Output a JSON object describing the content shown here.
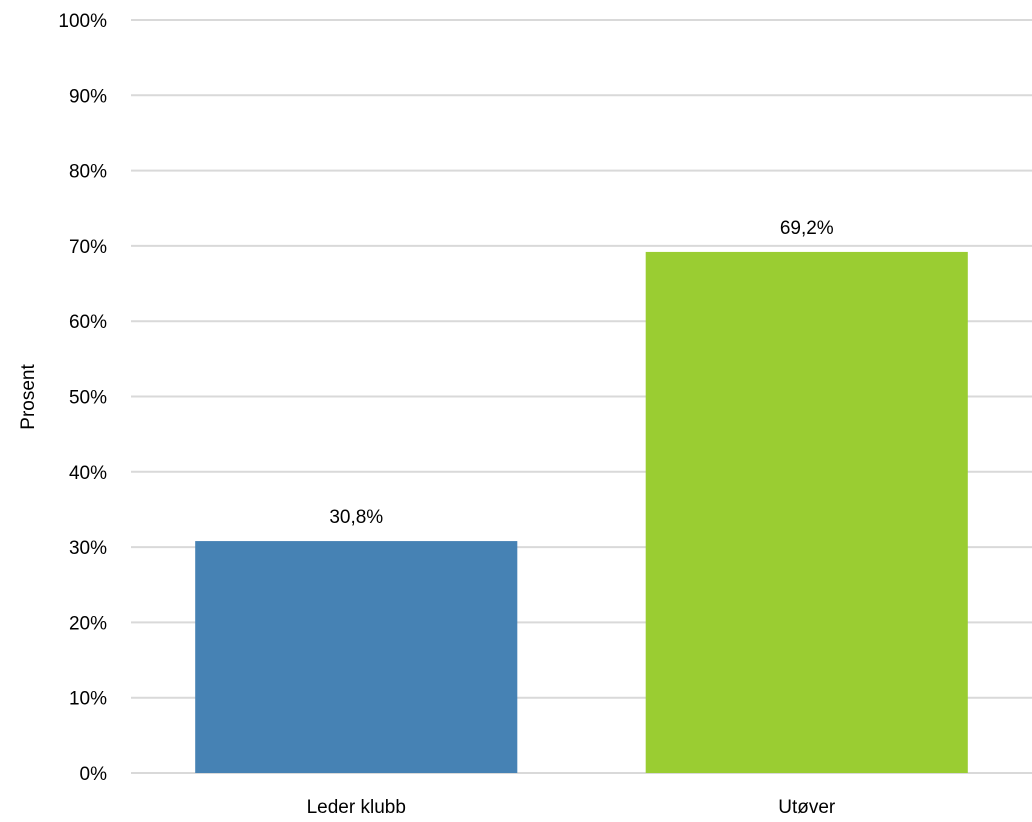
{
  "chart_data": {
    "type": "bar",
    "title": "",
    "xlabel": "",
    "ylabel": "Prosent",
    "categories": [
      "Leder klubb",
      "Utøver"
    ],
    "values": [
      30.8,
      69.2
    ],
    "data_labels": [
      "30,8%",
      "69,2%"
    ],
    "bar_colors": [
      "#4682b4",
      "#9acd32"
    ],
    "ylim": [
      0,
      100
    ],
    "yticks": [
      0,
      10,
      20,
      30,
      40,
      50,
      60,
      70,
      80,
      90,
      100
    ],
    "ytick_labels": [
      "0%",
      "10%",
      "20%",
      "30%",
      "40%",
      "50%",
      "60%",
      "70%",
      "80%",
      "90%",
      "100%"
    ],
    "grid": true,
    "legend": "none"
  }
}
